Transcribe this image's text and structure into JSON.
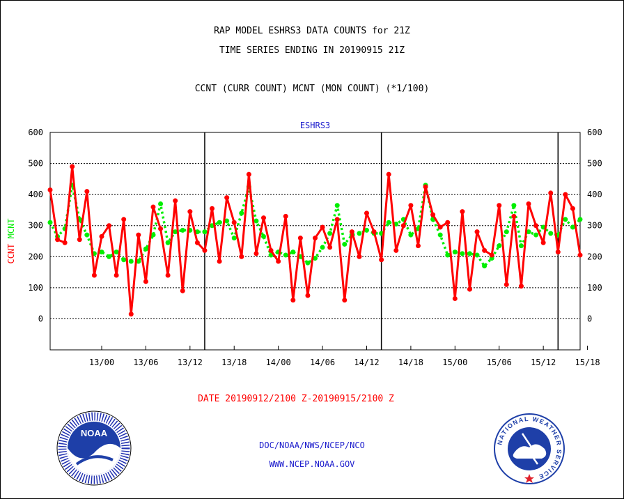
{
  "titles": {
    "line1": "RAP MODEL ESHRS3 DATA COUNTS for 21Z",
    "line2": "TIME SERIES ENDING IN 20190915 21Z",
    "line3": "CCNT (CURR COUNT) MCNT (MON COUNT) (*1/100)"
  },
  "date_range": "DATE 20190912/2100 Z-20190915/2100 Z",
  "footer": {
    "org": "DOC/NOAA/NWS/NCEP/NCO",
    "url": "WWW.NCEP.NOAA.GOV"
  },
  "logos": {
    "left": "NOAA",
    "right": "NATIONAL WEATHER SERVICE"
  },
  "colors": {
    "ccnt": "#ff0000",
    "mcnt": "#00ee00",
    "station_label": "#1a1acc",
    "grid": "#000000"
  },
  "chart_data": {
    "type": "line",
    "title": "ESHRS3",
    "ylabel_parts": [
      {
        "text": "CCNT",
        "color": "#ff0000"
      },
      {
        "text": "MCNT",
        "color": "#00ee00"
      }
    ],
    "ylim": [
      -100,
      600
    ],
    "yticks": [
      0,
      100,
      200,
      300,
      400,
      500,
      600
    ],
    "xlim": [
      0,
      72
    ],
    "xticks": [
      {
        "x": 7,
        "label": "13/00"
      },
      {
        "x": 13,
        "label": "13/06"
      },
      {
        "x": 19,
        "label": "13/12"
      },
      {
        "x": 25,
        "label": "13/18"
      },
      {
        "x": 31,
        "label": "14/00"
      },
      {
        "x": 37,
        "label": "14/06"
      },
      {
        "x": 43,
        "label": "14/12"
      },
      {
        "x": 49,
        "label": "14/18"
      },
      {
        "x": 55,
        "label": "15/00"
      },
      {
        "x": 61,
        "label": "15/06"
      },
      {
        "x": 67,
        "label": "15/12"
      },
      {
        "x": 73,
        "label": "15/18"
      }
    ],
    "day_boundaries": [
      21,
      45,
      69
    ],
    "grid": true,
    "series": [
      {
        "name": "CCNT",
        "color": "#ff0000",
        "style": "solid",
        "values": [
          415,
          255,
          245,
          490,
          255,
          410,
          140,
          265,
          300,
          140,
          320,
          15,
          270,
          120,
          360,
          290,
          140,
          380,
          90,
          345,
          245,
          220,
          355,
          185,
          390,
          310,
          200,
          465,
          210,
          325,
          220,
          185,
          330,
          60,
          260,
          75,
          260,
          295,
          230,
          320,
          60,
          280,
          200,
          340,
          280,
          190,
          465,
          220,
          300,
          365,
          235,
          425,
          335,
          295,
          310,
          65,
          345,
          95,
          280,
          220,
          205,
          365,
          110,
          330,
          105,
          370,
          300,
          245,
          405,
          215,
          400,
          355,
          205
        ]
      },
      {
        "name": "MCNT",
        "color": "#00ee00",
        "style": "dotted",
        "values": [
          310,
          265,
          290,
          430,
          320,
          270,
          210,
          215,
          200,
          215,
          190,
          185,
          185,
          225,
          270,
          370,
          245,
          280,
          285,
          285,
          280,
          280,
          300,
          310,
          315,
          260,
          340,
          425,
          315,
          265,
          205,
          215,
          205,
          215,
          200,
          180,
          195,
          230,
          275,
          365,
          240,
          270,
          275,
          285,
          275,
          275,
          310,
          305,
          320,
          270,
          290,
          430,
          320,
          270,
          205,
          215,
          210,
          210,
          205,
          170,
          195,
          235,
          280,
          365,
          235,
          280,
          270,
          295,
          275,
          270,
          320,
          295,
          320
        ]
      }
    ]
  }
}
